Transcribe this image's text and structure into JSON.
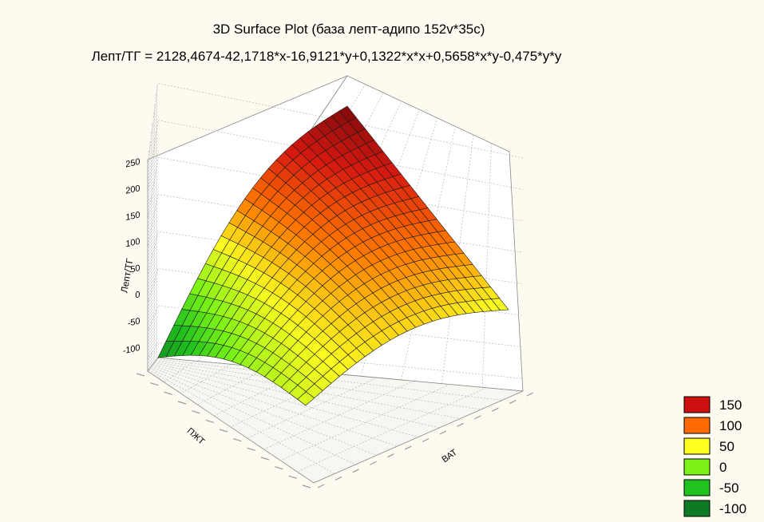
{
  "chart_data": {
    "type": "surface3d",
    "title": "3D Surface Plot (база лепт-адипо 152v*35c)",
    "subtitle": "Лепт/ТГ = 2128,4674-42,1718*x-16,9121*y+0,1322*x*x+0,5658*x*y-0,475*y*y",
    "xlabel": "ВАТ",
    "ylabel": "ПЖТ",
    "zlabel": "Лепт/ТГ",
    "zticks": [
      -100,
      -50,
      0,
      50,
      100,
      150,
      200,
      250
    ],
    "zlim": [
      -120,
      260
    ],
    "corner_values": {
      "near": -100,
      "left": 175,
      "right": 50,
      "far": 260
    },
    "grid": true,
    "legend": {
      "position": "bottom-right",
      "items": [
        {
          "label": "150",
          "color": "#cc1010"
        },
        {
          "label": "100",
          "color": "#ff6a00"
        },
        {
          "label": "50",
          "color": "#ffff20"
        },
        {
          "label": "0",
          "color": "#7cf218"
        },
        {
          "label": "-50",
          "color": "#20c21e"
        },
        {
          "label": "-100",
          "color": "#0f7a24"
        }
      ]
    }
  }
}
